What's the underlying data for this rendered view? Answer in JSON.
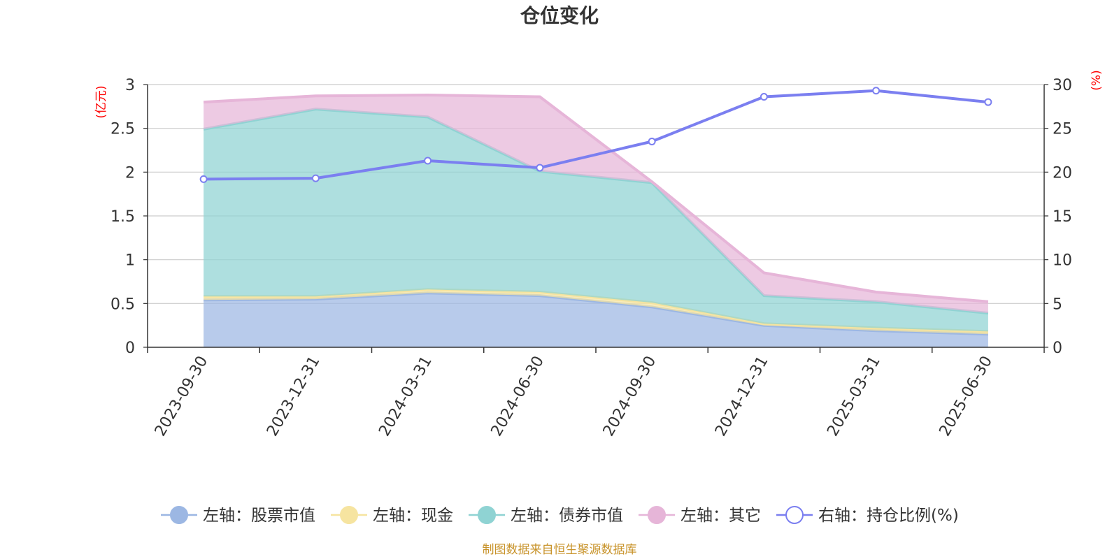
{
  "chart_data": {
    "type": "area",
    "title": "仓位变化",
    "categories": [
      "2023-09-30",
      "2023-12-31",
      "2024-03-31",
      "2024-06-30",
      "2024-09-30",
      "2024-12-31",
      "2025-03-31",
      "2025-06-30"
    ],
    "left_axis": {
      "unit": "(亿元)",
      "ylim": [
        0,
        3
      ],
      "ticks": [
        "0",
        "0.5",
        "1",
        "1.5",
        "2",
        "2.5",
        "3"
      ]
    },
    "right_axis": {
      "unit": "(%)",
      "ylim": [
        0,
        30
      ],
      "ticks": [
        "0",
        "5",
        "10",
        "15",
        "20",
        "25",
        "30"
      ]
    },
    "stacked_series": [
      {
        "name": "左轴：股票市值",
        "color": "#9cb7e3",
        "values": [
          0.54,
          0.55,
          0.62,
          0.59,
          0.46,
          0.25,
          0.19,
          0.15
        ]
      },
      {
        "name": "左轴：现金",
        "color": "#f6e4a0",
        "values": [
          0.04,
          0.03,
          0.04,
          0.04,
          0.05,
          0.02,
          0.03,
          0.03
        ]
      },
      {
        "name": "左轴：债券市值",
        "color": "#8fd3d3",
        "values": [
          1.91,
          2.14,
          1.97,
          1.38,
          1.37,
          0.32,
          0.3,
          0.21
        ]
      },
      {
        "name": "左轴：其它",
        "color": "#e6b5d8",
        "values": [
          0.31,
          0.15,
          0.25,
          0.85,
          0.01,
          0.26,
          0.11,
          0.13
        ]
      }
    ],
    "line_series": {
      "name": "右轴：持仓比例(%)",
      "color": "#7b7ff0",
      "values": [
        19.2,
        19.3,
        21.3,
        20.5,
        23.5,
        28.6,
        29.3,
        28.0
      ]
    },
    "grid": true,
    "legend_position": "bottom"
  },
  "footer": {
    "source": "制图数据来自恒生聚源数据库"
  }
}
